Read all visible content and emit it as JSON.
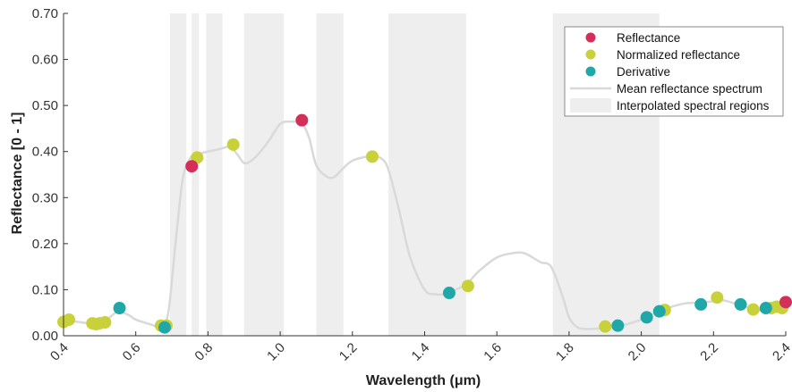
{
  "chart_data": {
    "type": "scatter",
    "xlabel": "Wavelength (μm)",
    "ylabel": "Reflectance [0 - 1]",
    "xlim": [
      0.4,
      2.4
    ],
    "ylim": [
      0,
      0.7
    ],
    "grid": false,
    "legend_position": "top-right",
    "x_ticks": [
      "0.4",
      "0.6",
      "0.8",
      "1.0",
      "1.2",
      "1.4",
      "1.6",
      "1.8",
      "2.0",
      "2.2",
      "2.4"
    ],
    "y_ticks": [
      "0.00",
      "0.10",
      "0.20",
      "0.30",
      "0.40",
      "0.50",
      "0.60",
      "0.70"
    ],
    "colors": {
      "reflectance": "#d42e5a",
      "normalized": "#c9d13a",
      "derivative": "#20a7a8",
      "mean_line": "#d9d9d9",
      "interpolated": "#eeeeee"
    },
    "legend": [
      {
        "label": "Reflectance",
        "kind": "marker",
        "color": "#d42e5a"
      },
      {
        "label": "Normalized reflectance",
        "kind": "marker",
        "color": "#c9d13a"
      },
      {
        "label": "Derivative",
        "kind": "marker",
        "color": "#20a7a8"
      },
      {
        "label": "Mean reflectance spectrum",
        "kind": "line",
        "color": "#d9d9d9"
      },
      {
        "label": "Interpolated spectral regions",
        "kind": "patch",
        "color": "#eeeeee"
      }
    ],
    "interpolated_regions": [
      [
        0.695,
        0.74
      ],
      [
        0.755,
        0.775
      ],
      [
        0.795,
        0.84
      ],
      [
        0.9,
        1.01
      ],
      [
        1.1,
        1.175
      ],
      [
        1.3,
        1.515
      ],
      [
        1.755,
        2.05
      ]
    ],
    "mean_spectrum": {
      "x": [
        0.4,
        0.42,
        0.44,
        0.46,
        0.48,
        0.5,
        0.52,
        0.55,
        0.58,
        0.6,
        0.64,
        0.67,
        0.69,
        0.71,
        0.73,
        0.75,
        0.76,
        0.78,
        0.8,
        0.83,
        0.86,
        0.88,
        0.9,
        0.92,
        0.94,
        0.97,
        1.0,
        1.03,
        1.06,
        1.08,
        1.1,
        1.13,
        1.15,
        1.17,
        1.2,
        1.25,
        1.28,
        1.3,
        1.33,
        1.36,
        1.4,
        1.43,
        1.45,
        1.47,
        1.5,
        1.52,
        1.55,
        1.6,
        1.65,
        1.68,
        1.72,
        1.75,
        1.78,
        1.8,
        1.82,
        1.84,
        1.87,
        1.9,
        1.93,
        1.96,
        2.0,
        2.04,
        2.08,
        2.12,
        2.16,
        2.2,
        2.22,
        2.26,
        2.3,
        2.33,
        2.36,
        2.38,
        2.4
      ],
      "y": [
        0.03,
        0.032,
        0.03,
        0.028,
        0.027,
        0.028,
        0.035,
        0.052,
        0.045,
        0.035,
        0.025,
        0.02,
        0.05,
        0.2,
        0.34,
        0.385,
        0.39,
        0.396,
        0.4,
        0.405,
        0.41,
        0.395,
        0.375,
        0.38,
        0.395,
        0.425,
        0.46,
        0.465,
        0.46,
        0.43,
        0.37,
        0.345,
        0.345,
        0.36,
        0.38,
        0.39,
        0.385,
        0.36,
        0.27,
        0.17,
        0.1,
        0.09,
        0.09,
        0.095,
        0.105,
        0.115,
        0.14,
        0.17,
        0.18,
        0.178,
        0.16,
        0.15,
        0.09,
        0.04,
        0.02,
        0.015,
        0.015,
        0.017,
        0.02,
        0.025,
        0.035,
        0.05,
        0.062,
        0.07,
        0.072,
        0.075,
        0.078,
        0.07,
        0.06,
        0.055,
        0.06,
        0.065,
        0.07
      ]
    },
    "series": [
      {
        "name": "Reflectance",
        "x": [
          0.755,
          1.06,
          2.4
        ],
        "y": [
          0.368,
          0.468,
          0.073
        ]
      },
      {
        "name": "Normalized reflectance",
        "x": [
          0.4,
          0.415,
          0.48,
          0.49,
          0.5,
          0.515,
          0.67,
          0.685,
          0.77,
          0.87,
          1.255,
          1.52,
          1.9,
          2.065,
          2.21,
          2.31,
          2.36,
          2.375,
          2.39
        ],
        "y": [
          0.03,
          0.035,
          0.027,
          0.025,
          0.027,
          0.029,
          0.022,
          0.022,
          0.387,
          0.415,
          0.389,
          0.108,
          0.02,
          0.056,
          0.083,
          0.057,
          0.06,
          0.063,
          0.06
        ]
      },
      {
        "name": "Derivative",
        "x": [
          0.555,
          0.68,
          1.468,
          1.935,
          2.015,
          2.05,
          2.165,
          2.275,
          2.345
        ],
        "y": [
          0.06,
          0.018,
          0.093,
          0.022,
          0.04,
          0.053,
          0.068,
          0.068,
          0.06
        ]
      }
    ]
  }
}
